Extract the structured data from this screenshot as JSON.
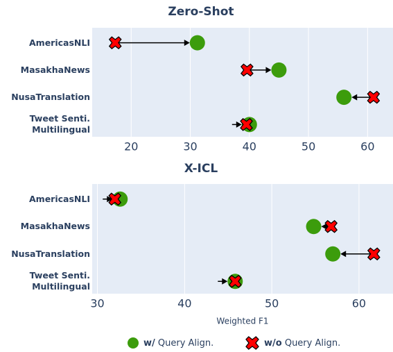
{
  "chart_data": [
    {
      "type": "dumbbell",
      "title": "Zero-Shot",
      "categories": [
        "AmericasNLI",
        "MasakhaNews",
        "NusaTranslation",
        "Tweet Senti.\nMultilingual"
      ],
      "series": [
        {
          "name": "w/ Query Align.",
          "color": "#3c9c0c",
          "marker": "circle",
          "values": [
            31.2,
            45.0,
            56.0,
            40.0
          ]
        },
        {
          "name": "w/o Query Align.",
          "color": "#ff0000",
          "marker": "x",
          "values": [
            17.3,
            39.6,
            61.0,
            39.5
          ]
        }
      ],
      "xlim": [
        13.4,
        64.3
      ],
      "xticks": [
        20,
        30,
        40,
        50,
        60
      ],
      "grid": true
    },
    {
      "type": "dumbbell",
      "title": "X-ICL",
      "xlabel": "Weighted F1",
      "categories": [
        "AmericasNLI",
        "MasakhaNews",
        "NusaTranslation",
        "Tweet Senti.\nMultilingual"
      ],
      "series": [
        {
          "name": "w/ Query Align.",
          "color": "#3c9c0c",
          "marker": "circle",
          "values": [
            32.6,
            54.8,
            57.0,
            45.8
          ]
        },
        {
          "name": "w/o Query Align.",
          "color": "#ff0000",
          "marker": "x",
          "values": [
            32.0,
            56.8,
            61.7,
            45.8
          ]
        }
      ],
      "xlim": [
        29.4,
        63.9
      ],
      "xticks": [
        30,
        40,
        50,
        60
      ],
      "grid": true
    }
  ]
}
